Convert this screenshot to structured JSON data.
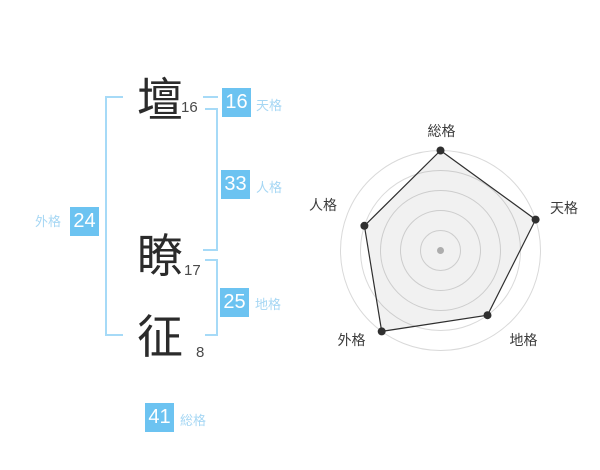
{
  "page": {
    "background": "#ffffff"
  },
  "name_display": {
    "characters": [
      {
        "char": "壇",
        "strokes": "16"
      },
      {
        "char": "瞭",
        "strokes": "17"
      },
      {
        "char": "征",
        "strokes": "8"
      }
    ]
  },
  "scores": {
    "tenkaku": {
      "label": "天格",
      "value": "16"
    },
    "jinkaku": {
      "label": "人格",
      "value": "33"
    },
    "chikaku": {
      "label": "地格",
      "value": "25"
    },
    "gaikaku": {
      "label": "外格",
      "value": "24"
    },
    "soukaku": {
      "label": "総格",
      "value": "41"
    }
  },
  "colors": {
    "page_bg": "#ffffff",
    "badge_bg": "#6cc3f1",
    "badge_text": "#ffffff",
    "label_text": "#a6d7f4",
    "bracket": "#a6daf7",
    "kanji": "#2b2b2b",
    "stroke_count": "#4a4a4a",
    "chart_ring": "#d9d9d9",
    "chart_line": "#2f2f2f",
    "chart_fill": "rgba(0,0,0,0.055)",
    "chart_label": "#3c3c3c",
    "chart_dot": "#2f2f2f",
    "chart_center_dot": "#b8b8b8"
  },
  "chart_data": {
    "type": "radar",
    "axes": [
      "総格",
      "天格",
      "地格",
      "外格",
      "人格"
    ],
    "values": [
      5,
      5,
      4,
      5,
      4
    ],
    "max": 5,
    "rings": 5,
    "grid": "concentric-circles",
    "legend": "none",
    "start_axis": "top",
    "direction": "clockwise"
  }
}
